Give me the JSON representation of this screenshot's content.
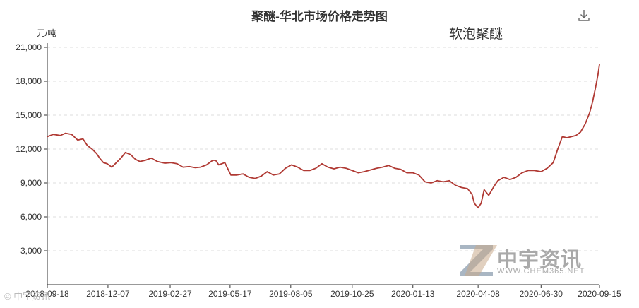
{
  "title": "聚醚-华北市场价格走势图",
  "subtitle": "软泡聚醚",
  "unit": "元/吨",
  "download_icon": "download-icon",
  "watermark": {
    "brand": "中宇资讯",
    "url": "WWW.CHEM365.NET"
  },
  "credit": "© 中宇资讯",
  "colors": {
    "line": "#b03a34",
    "grid": "#dddddd",
    "axis": "#333333",
    "watermark": "#a9a9a9"
  },
  "chart_data": {
    "type": "line",
    "title": "聚醚-华北市场价格走势图",
    "subtitle": "软泡聚醚",
    "ylabel": "元/吨",
    "ylim": [
      0,
      21000
    ],
    "yticks": [
      3000,
      6000,
      9000,
      12000,
      15000,
      18000,
      21000
    ],
    "ytick_labels": [
      "3,000",
      "6,000",
      "9,000",
      "12,000",
      "15,000",
      "18,000",
      "21,000"
    ],
    "xlim": [
      "2018-09-18",
      "2020-09-15"
    ],
    "xticks": [
      "2018-09-18",
      "2018-12-07",
      "2019-02-27",
      "2019-05-17",
      "2019-08-05",
      "2019-10-25",
      "2020-01-13",
      "2020-04-08",
      "2020-06-30",
      "2020-09-15"
    ],
    "grid": "horizontal-dashed",
    "series": [
      {
        "x": [
          "2018-09-18",
          "2018-09-26",
          "2018-10-05",
          "2018-10-12",
          "2018-10-20",
          "2018-10-28",
          "2018-11-04",
          "2018-11-10",
          "2018-11-16",
          "2018-11-22",
          "2018-11-26",
          "2018-12-01",
          "2018-12-06",
          "2018-12-12",
          "2018-12-18",
          "2018-12-24",
          "2018-12-30",
          "2019-01-06",
          "2019-01-12",
          "2019-01-18",
          "2019-01-25",
          "2019-02-02",
          "2019-02-10",
          "2019-02-20",
          "2019-02-28",
          "2019-03-08",
          "2019-03-16",
          "2019-03-24",
          "2019-04-01",
          "2019-04-08",
          "2019-04-16",
          "2019-04-24",
          "2019-04-28",
          "2019-05-02",
          "2019-05-10",
          "2019-05-18",
          "2019-05-26",
          "2019-06-03",
          "2019-06-11",
          "2019-06-19",
          "2019-06-27",
          "2019-07-05",
          "2019-07-13",
          "2019-07-21",
          "2019-07-29",
          "2019-08-06",
          "2019-08-14",
          "2019-08-22",
          "2019-08-30",
          "2019-09-07",
          "2019-09-15",
          "2019-09-23",
          "2019-10-01",
          "2019-10-09",
          "2019-10-17",
          "2019-10-25",
          "2019-11-02",
          "2019-11-10",
          "2019-11-18",
          "2019-11-26",
          "2019-12-04",
          "2019-12-12",
          "2019-12-20",
          "2019-12-28",
          "2020-01-05",
          "2020-01-13",
          "2020-01-21",
          "2020-01-29",
          "2020-02-06",
          "2020-02-14",
          "2020-02-22",
          "2020-03-01",
          "2020-03-09",
          "2020-03-17",
          "2020-03-25",
          "2020-03-31",
          "2020-04-03",
          "2020-04-08",
          "2020-04-12",
          "2020-04-16",
          "2020-04-22",
          "2020-04-28",
          "2020-05-04",
          "2020-05-12",
          "2020-05-20",
          "2020-05-28",
          "2020-06-05",
          "2020-06-13",
          "2020-06-21",
          "2020-06-30",
          "2020-07-08",
          "2020-07-16",
          "2020-07-22",
          "2020-07-28",
          "2020-08-03",
          "2020-08-09",
          "2020-08-15",
          "2020-08-21",
          "2020-08-27",
          "2020-09-02",
          "2020-09-06",
          "2020-09-10",
          "2020-09-13",
          "2020-09-15"
        ],
        "values": [
          13100,
          13300,
          13200,
          13400,
          13300,
          12800,
          12900,
          12300,
          12000,
          11600,
          11200,
          10800,
          10700,
          10400,
          10800,
          11200,
          11700,
          11500,
          11100,
          10900,
          11000,
          11200,
          10900,
          10750,
          10800,
          10700,
          10400,
          10450,
          10350,
          10400,
          10600,
          11000,
          11000,
          10600,
          10800,
          9700,
          9700,
          9800,
          9500,
          9400,
          9600,
          10000,
          9700,
          9800,
          10300,
          10600,
          10400,
          10100,
          10100,
          10300,
          10700,
          10400,
          10250,
          10400,
          10300,
          10100,
          9900,
          10000,
          10150,
          10300,
          10400,
          10550,
          10300,
          10200,
          9900,
          9900,
          9700,
          9100,
          9000,
          9200,
          9100,
          9200,
          8800,
          8600,
          8500,
          8000,
          7200,
          6800,
          7200,
          8400,
          7900,
          8600,
          9200,
          9500,
          9300,
          9500,
          9900,
          10100,
          10100,
          10000,
          10300,
          10800,
          12000,
          13100,
          13000,
          13100,
          13200,
          13500,
          14200,
          15200,
          16200,
          17500,
          18600,
          19500
        ]
      }
    ]
  }
}
